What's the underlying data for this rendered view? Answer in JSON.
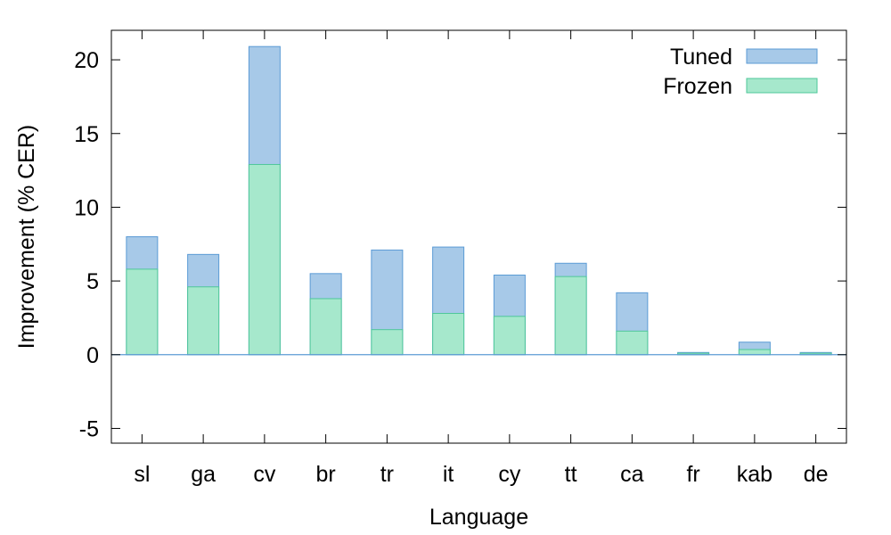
{
  "chart_data": {
    "type": "bar",
    "title": "",
    "xlabel": "Language",
    "ylabel": "Improvement (% CER)",
    "ylim": [
      -6,
      22
    ],
    "yticks": [
      -5,
      0,
      5,
      10,
      15,
      20
    ],
    "categories": [
      "sl",
      "ga",
      "cv",
      "br",
      "tr",
      "it",
      "cy",
      "tt",
      "ca",
      "fr",
      "kab",
      "de"
    ],
    "series": [
      {
        "name": "Tuned",
        "color": "#a7c9e8",
        "stroke": "#5b9bd5",
        "values": [
          8.0,
          6.8,
          20.9,
          5.5,
          7.1,
          7.3,
          5.4,
          6.2,
          4.2,
          0.15,
          0.85,
          0.15
        ]
      },
      {
        "name": "Frozen",
        "color": "#a6e8cc",
        "stroke": "#4fc79a",
        "values": [
          5.8,
          4.6,
          12.9,
          3.8,
          1.7,
          2.8,
          2.6,
          5.3,
          1.6,
          0.1,
          0.35,
          0.1
        ]
      }
    ],
    "overlay": true,
    "grid": false,
    "legend_position": "top-right",
    "zero_line_color": "#5b9bd5"
  }
}
